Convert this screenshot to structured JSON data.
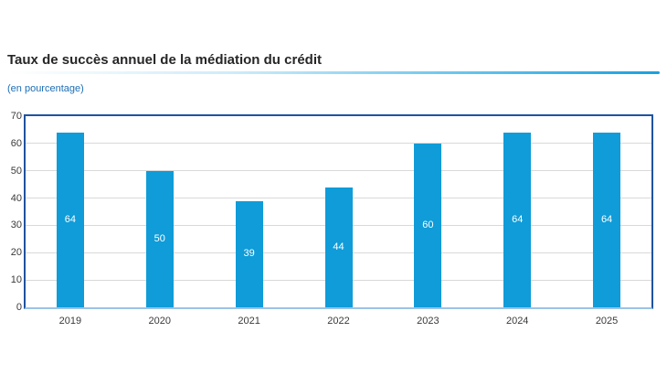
{
  "header": {
    "title": "Taux de succès annuel de la médiation du crédit",
    "subtitle": "(en pourcentage)"
  },
  "colors": {
    "bar": "#0f9cd8",
    "plot_border": "#1f53a0",
    "baseline": "#9cc3e6",
    "gridline": "#d9d9d9",
    "title_text": "#262626",
    "subtitle_text": "#1d6eb5",
    "axis_text": "#3a3a3a",
    "bar_label_text": "#ffffff",
    "title_rule_end": "#18a0e0"
  },
  "chart_data": {
    "type": "bar",
    "title": "Taux de succès annuel de la médiation du crédit",
    "subtitle": "(en pourcentage)",
    "categories": [
      "2019",
      "2020",
      "2021",
      "2022",
      "2023",
      "2024",
      "2025"
    ],
    "values": [
      64,
      50,
      39,
      44,
      60,
      64,
      64
    ],
    "bar_labels": [
      "64",
      "50",
      "39",
      "44",
      "60",
      "64",
      "64"
    ],
    "xlabel": "",
    "ylabel": "",
    "ylim": [
      0,
      70
    ],
    "ytick_step": 10,
    "ytick_labels": [
      "0",
      "10",
      "20",
      "30",
      "40",
      "50",
      "60",
      "70"
    ],
    "grid": true,
    "legend": false,
    "bar_label_position": "inside-center"
  }
}
